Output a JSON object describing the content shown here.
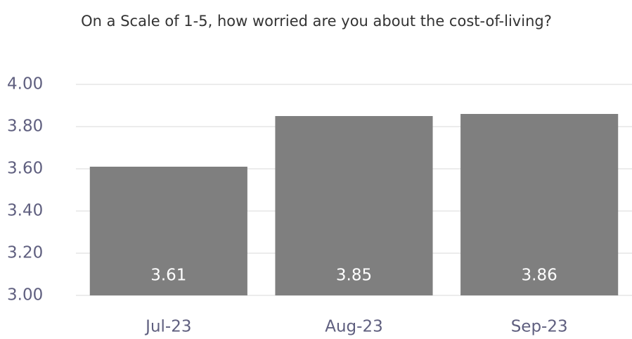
{
  "chart_data": {
    "type": "bar",
    "title": "On a Scale of 1-5, how worried are you about the cost-of-living?",
    "categories": [
      "Jul-23",
      "Aug-23",
      "Sep-23"
    ],
    "values": [
      3.61,
      3.85,
      3.86
    ],
    "color": "#7f7f7f",
    "ylim": [
      3,
      4
    ],
    "yticks": [
      {
        "value": 3,
        "label": "3.00"
      },
      {
        "value": 3.2,
        "label": "3.20"
      },
      {
        "value": 3.4,
        "label": "3.40"
      },
      {
        "value": 3.6,
        "label": "3.60"
      },
      {
        "value": 3.8,
        "label": "3.80"
      },
      {
        "value": 4,
        "label": "4.00"
      }
    ],
    "grid": true
  }
}
